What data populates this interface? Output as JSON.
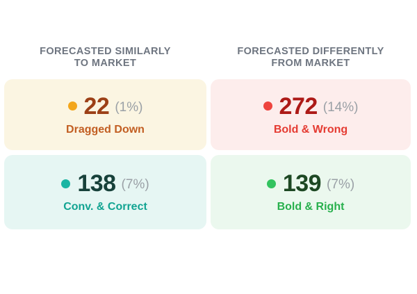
{
  "columns": [
    {
      "header": "FORECASTED SIMILARLY\nTO MARKET"
    },
    {
      "header": "FORECASTED DIFFERENTLY\nFROM MARKET"
    }
  ],
  "shared": {
    "header_color": "#6E7580",
    "percent_color": "#9AA0A6",
    "page_background": "#FFFFFF"
  },
  "cards": [
    {
      "value": "22",
      "percent": "(1%)",
      "label": "Dragged Down",
      "colors": {
        "background": "#FBF5E2",
        "dot": "#F3A61B",
        "value": "#9C4017",
        "label": "#C25E22"
      }
    },
    {
      "value": "272",
      "percent": "(14%)",
      "label": "Bold & Wrong",
      "colors": {
        "background": "#FDEDEC",
        "dot": "#EE443E",
        "value": "#AD1A17",
        "label": "#E53B32"
      }
    },
    {
      "value": "138",
      "percent": "(7%)",
      "label": "Conv. & Correct",
      "colors": {
        "background": "#E6F6F3",
        "dot": "#1BB5A3",
        "value": "#17413A",
        "label": "#12A492"
      }
    },
    {
      "value": "139",
      "percent": "(7%)",
      "label": "Bold & Right",
      "colors": {
        "background": "#EBF8EE",
        "dot": "#33C35F",
        "value": "#1D4823",
        "label": "#28B04D"
      }
    }
  ],
  "chart_data": {
    "type": "table",
    "title": "",
    "groups": [
      "Forecasted similarly to market",
      "Forecasted differently from market"
    ],
    "series": [
      {
        "name": "Dragged Down",
        "count": 22,
        "percent": 1,
        "group": "Forecasted similarly to market"
      },
      {
        "name": "Bold & Wrong",
        "count": 272,
        "percent": 14,
        "group": "Forecasted differently from market"
      },
      {
        "name": "Conv. & Correct",
        "count": 138,
        "percent": 7,
        "group": "Forecasted similarly to market"
      },
      {
        "name": "Bold & Right",
        "count": 139,
        "percent": 7,
        "group": "Forecasted differently from market"
      }
    ],
    "legend": false,
    "grid": false
  }
}
